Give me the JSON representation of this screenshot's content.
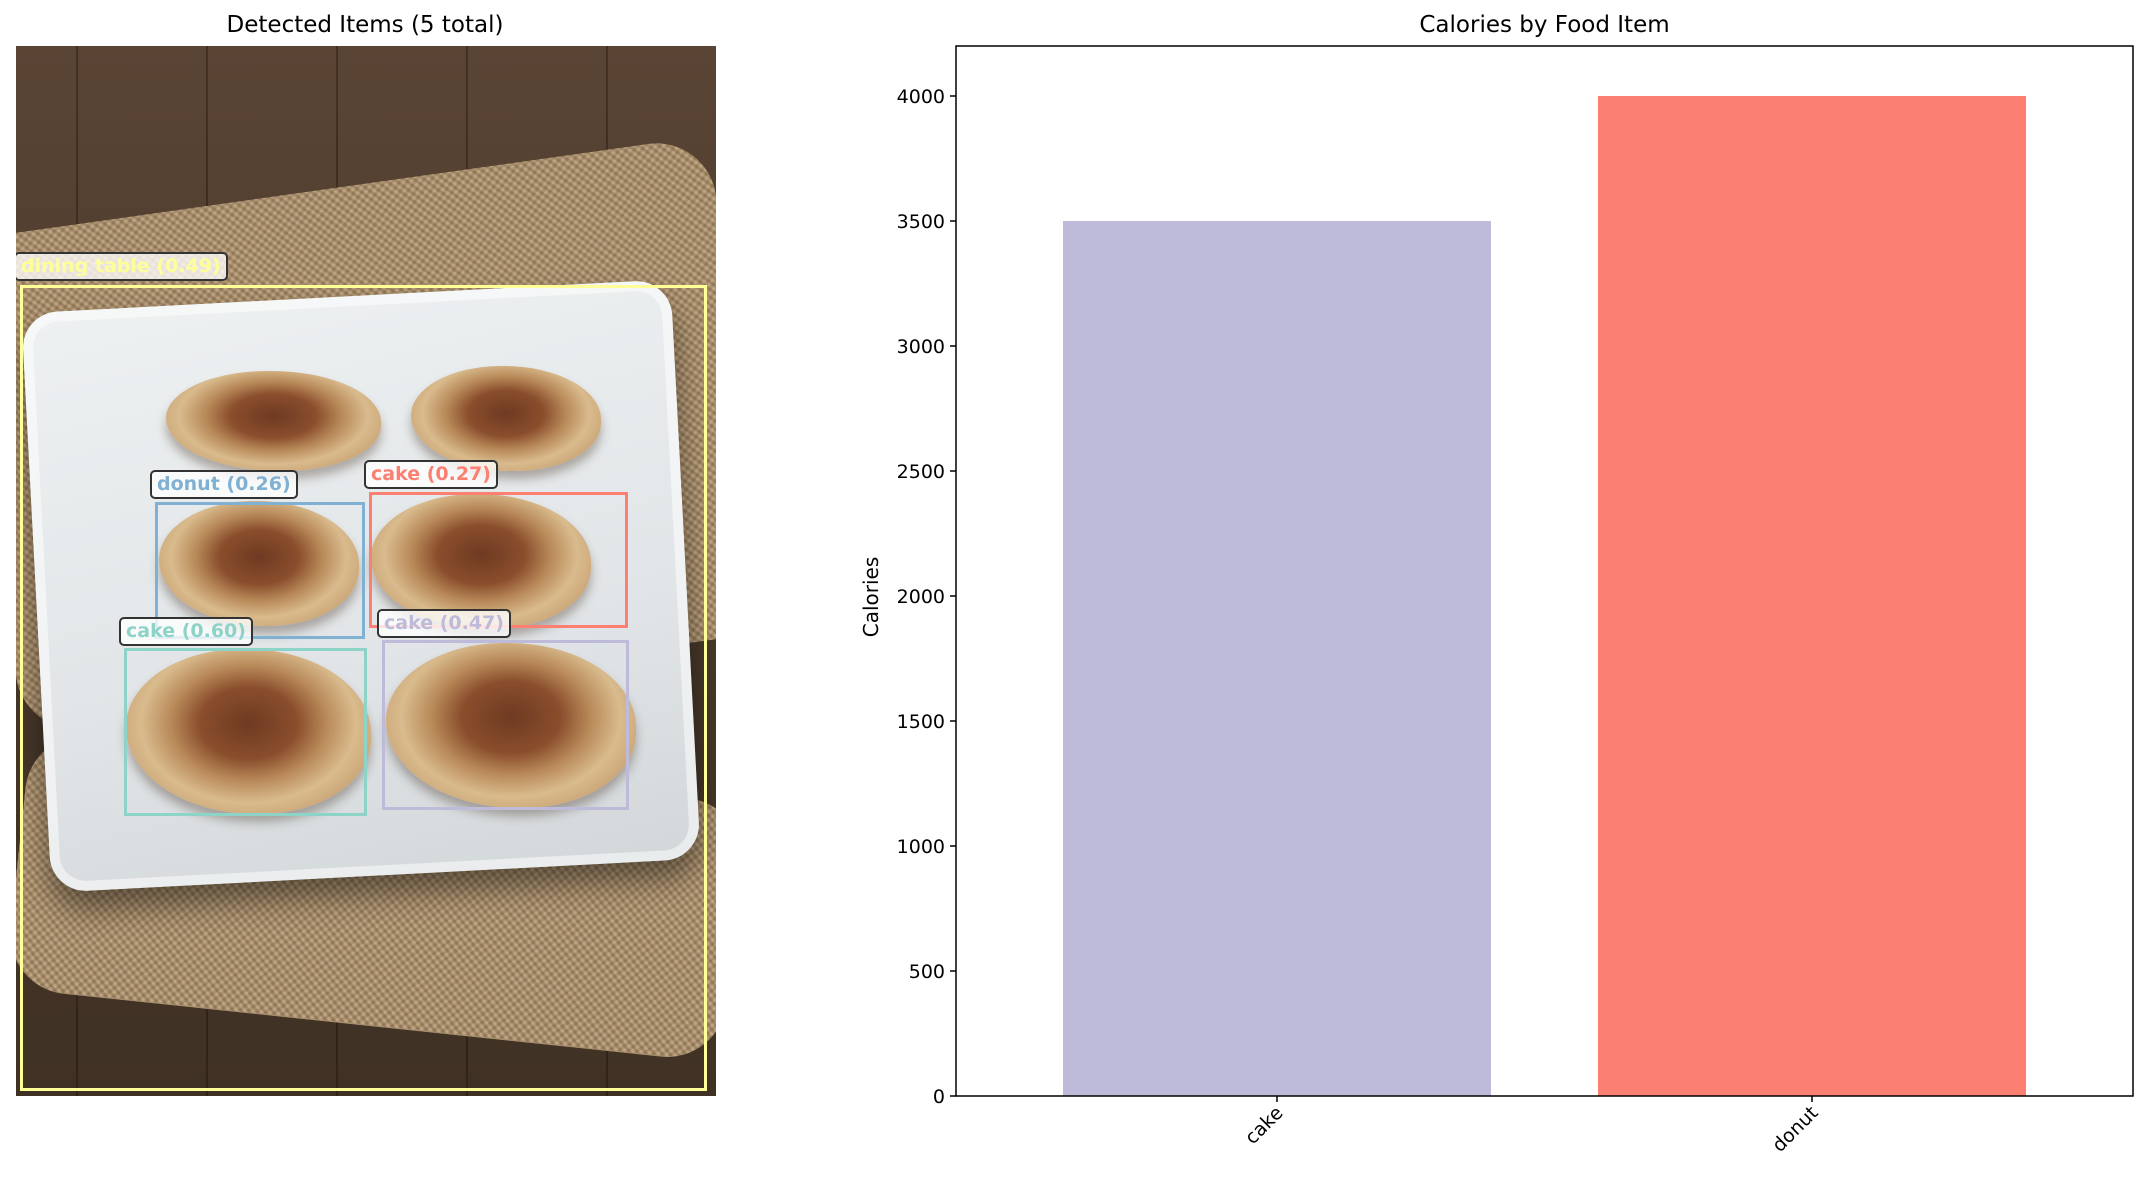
{
  "detection_panel": {
    "title": "Detected Items (5 total)",
    "detections": [
      {
        "label": "dining table (0.49)",
        "color": "#ffff99"
      },
      {
        "label": "donut (0.26)",
        "color": "#80b1d3"
      },
      {
        "label": "cake (0.27)",
        "color": "#fb8072"
      },
      {
        "label": "cake (0.60)",
        "color": "#8dd3c7"
      },
      {
        "label": "cake (0.47)",
        "color": "#bebada"
      }
    ]
  },
  "chart_data": {
    "type": "bar",
    "title": "Calories by Food Item",
    "xlabel": "",
    "ylabel": "Calories",
    "categories": [
      "cake",
      "donut"
    ],
    "values": [
      3500,
      4000
    ],
    "colors": [
      "#bebada",
      "#fb8072"
    ],
    "ylim": [
      0,
      4200
    ],
    "yticks": [
      0,
      500,
      1000,
      1500,
      2000,
      2500,
      3000,
      3500,
      4000
    ],
    "grid": false,
    "tick_rotation": 45
  }
}
